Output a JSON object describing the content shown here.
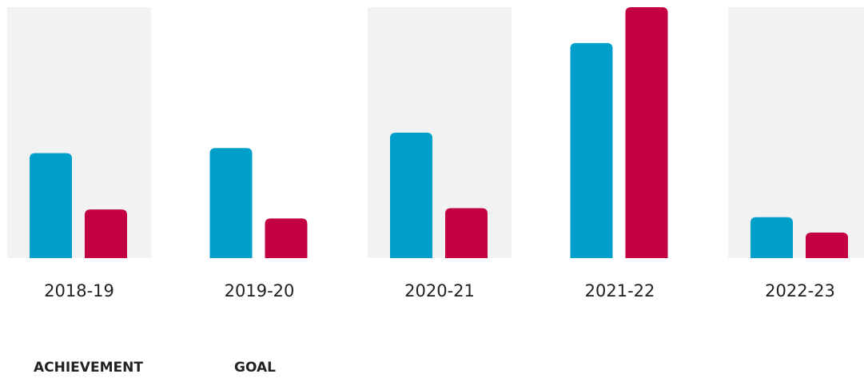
{
  "chart_data": {
    "type": "bar",
    "categories": [
      "2018-19",
      "2019-20",
      "2020-21",
      "2021-22",
      "2022-23"
    ],
    "series": [
      {
        "name": "ACHIEVEMENT",
        "color": "#009fca",
        "values": [
          41,
          43,
          49,
          84,
          16
        ]
      },
      {
        "name": "GOAL",
        "color": "#c20042",
        "values": [
          19,
          15.5,
          19.5,
          98,
          10
        ]
      }
    ],
    "ylim": [
      0,
      98
    ],
    "band_color": "#f2f2f2",
    "band_pattern": [
      "shaded",
      "plain",
      "shaded",
      "plain",
      "shaded"
    ],
    "grid": false,
    "legend_position": "bottom-left"
  }
}
